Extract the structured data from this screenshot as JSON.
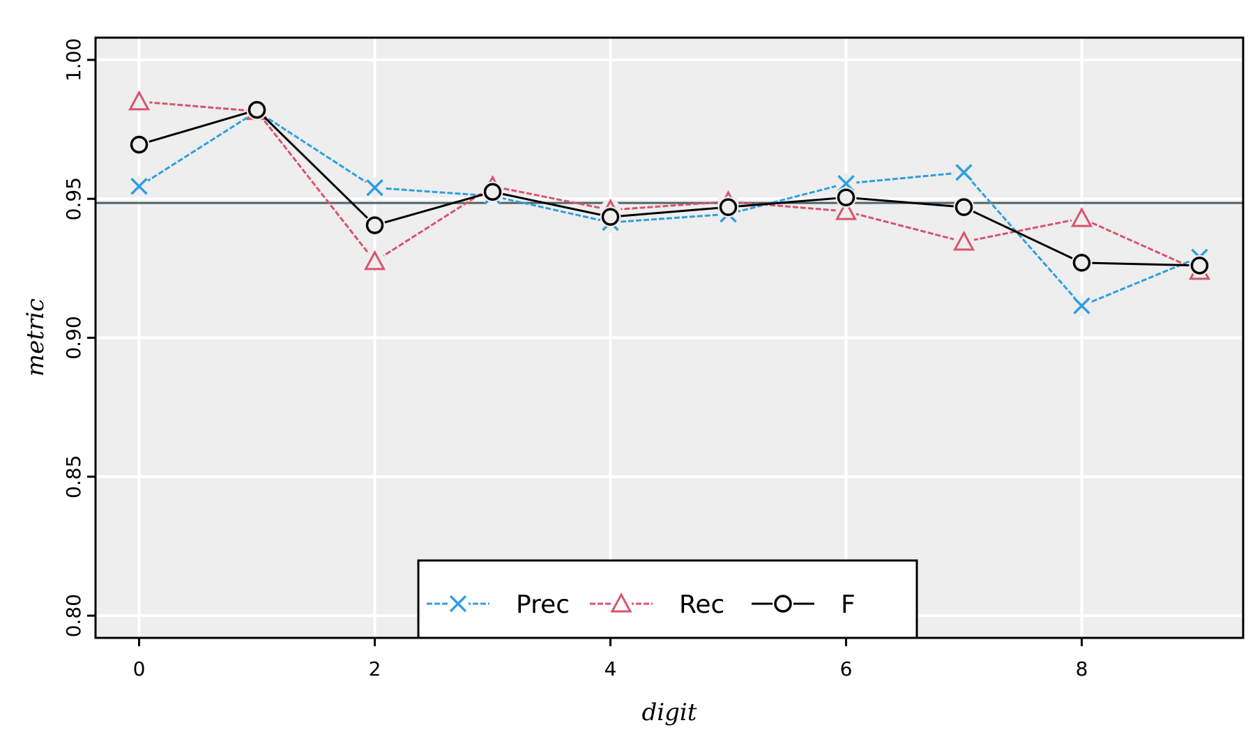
{
  "chart_data": {
    "type": "line",
    "title": "",
    "xlabel": "digit",
    "ylabel": "metric",
    "x": [
      0,
      1,
      2,
      3,
      4,
      5,
      6,
      7,
      8,
      9
    ],
    "xlim": [
      -0.37,
      9.37
    ],
    "ylim": [
      0.792,
      1.008
    ],
    "xticks": [
      0,
      2,
      4,
      6,
      8
    ],
    "xtick_labels": [
      "0",
      "2",
      "4",
      "6",
      "8"
    ],
    "yticks": [
      0.8,
      0.85,
      0.9,
      0.95,
      1.0
    ],
    "ytick_labels": [
      "0.80",
      "0.85",
      "0.90",
      "0.95",
      "1.00"
    ],
    "grid": true,
    "background": "#eeeeee",
    "reference_line": {
      "y": 0.9485,
      "color": "#4f6665"
    },
    "legend": {
      "placement": "bottom-center",
      "orientation": "horizontal"
    },
    "series": [
      {
        "name": "Prec",
        "marker": "x",
        "color": "#2f9ee2",
        "dashed": true,
        "values": [
          0.9545,
          0.9815,
          0.954,
          0.951,
          0.9415,
          0.9445,
          0.9555,
          0.9595,
          0.9115,
          0.929
        ]
      },
      {
        "name": "Rec",
        "marker": "triangle",
        "color": "#d9536d",
        "dashed": true,
        "values": [
          0.985,
          0.9815,
          0.9275,
          0.9545,
          0.946,
          0.949,
          0.9455,
          0.9345,
          0.943,
          0.924
        ]
      },
      {
        "name": "F",
        "marker": "circle",
        "color": "#000000",
        "dashed": false,
        "values": [
          0.9695,
          0.982,
          0.9405,
          0.9525,
          0.9435,
          0.947,
          0.9505,
          0.947,
          0.927,
          0.926
        ]
      }
    ]
  }
}
